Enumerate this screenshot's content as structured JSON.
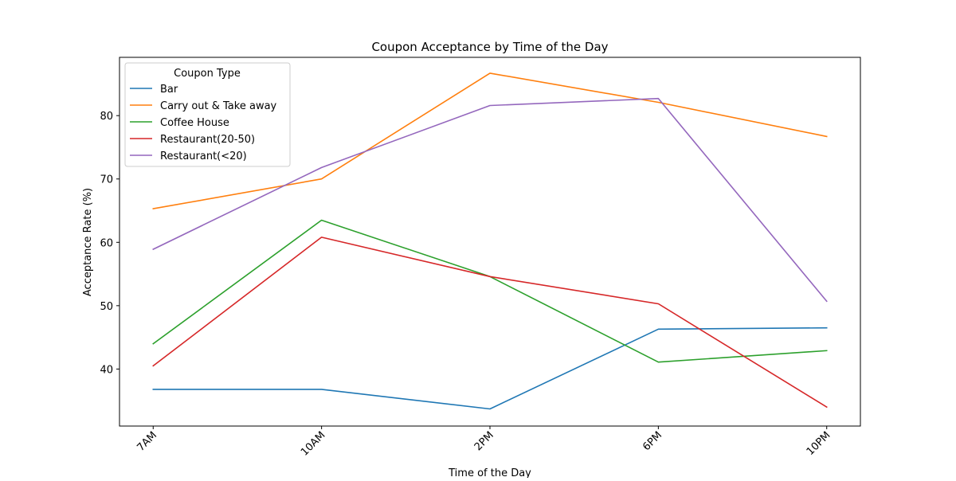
{
  "chart_data": {
    "type": "line",
    "title": "Coupon Acceptance by Time of the Day",
    "xlabel": "Time of the Day",
    "ylabel": "Acceptance Rate (%)",
    "categories": [
      "7AM",
      "10AM",
      "2PM",
      "6PM",
      "10PM"
    ],
    "ylim": [
      31.0,
      89.2
    ],
    "yticks": [
      40,
      50,
      60,
      70,
      80
    ],
    "grid": false,
    "legend": {
      "title": "Coupon Type",
      "placement": "top-left"
    },
    "series": [
      {
        "name": "Bar",
        "color": "#1f77b4",
        "values": [
          36.8,
          36.8,
          33.7,
          46.3,
          46.5
        ]
      },
      {
        "name": "Carry out & Take away",
        "color": "#ff7f0e",
        "values": [
          65.3,
          70.0,
          86.7,
          82.1,
          76.7
        ]
      },
      {
        "name": "Coffee House",
        "color": "#2ca02c",
        "values": [
          44.0,
          63.5,
          54.6,
          41.1,
          42.9
        ]
      },
      {
        "name": "Restaurant(20-50)",
        "color": "#d62728",
        "values": [
          40.5,
          60.8,
          54.6,
          50.3,
          34.0
        ]
      },
      {
        "name": "Restaurant(<20)",
        "color": "#9467bd",
        "values": [
          58.9,
          71.8,
          81.6,
          82.7,
          50.7
        ]
      }
    ]
  }
}
